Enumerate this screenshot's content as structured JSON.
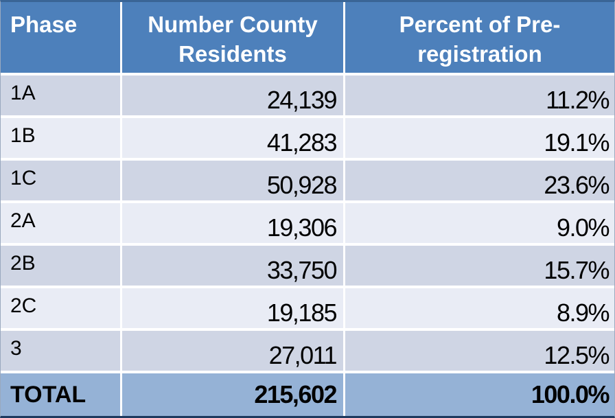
{
  "colors": {
    "header_bg": "#4d80bb",
    "header_text": "#ffffff",
    "band_dark": "#cfd5e4",
    "band_light": "#e9ecf5",
    "total_bg": "#95b2d6",
    "body_text": "#000000",
    "gap": "#ffffff",
    "border_top": "#3a6596",
    "border_bottom": "#1e3a5f",
    "border_side": "#9aa9bf"
  },
  "header": {
    "phase": "Phase",
    "residents": "Number County\nResidents",
    "percent": "Percent of Pre-\nregistration"
  },
  "rows": [
    {
      "phase": "1A",
      "residents": "24,139",
      "percent": "11.2%"
    },
    {
      "phase": "1B",
      "residents": "41,283",
      "percent": "19.1%"
    },
    {
      "phase": "1C",
      "residents": "50,928",
      "percent": "23.6%"
    },
    {
      "phase": "2A",
      "residents": "19,306",
      "percent": "9.0%"
    },
    {
      "phase": "2B",
      "residents": "33,750",
      "percent": "15.7%"
    },
    {
      "phase": "2C",
      "residents": "19,185",
      "percent": "8.9%"
    },
    {
      "phase": "3",
      "residents": "27,011",
      "percent": "12.5%"
    }
  ],
  "total": {
    "label": "TOTAL",
    "residents": "215,602",
    "percent": "100.0%"
  },
  "chart_data": {
    "type": "table",
    "columns": [
      "Phase",
      "Number County Residents",
      "Percent of Pre-registration"
    ],
    "rows": [
      [
        "1A",
        "24,139",
        "11.2%"
      ],
      [
        "1B",
        "41,283",
        "19.1%"
      ],
      [
        "1C",
        "50,928",
        "23.6%"
      ],
      [
        "2A",
        "19,306",
        "9.0%"
      ],
      [
        "2B",
        "33,750",
        "15.7%"
      ],
      [
        "2C",
        "19,185",
        "8.9%"
      ],
      [
        "3",
        "27,011",
        "12.5%"
      ]
    ],
    "total_row": [
      "TOTAL",
      "215,602",
      "100.0%"
    ],
    "notes": "Banded table; header and total rows in blue; counts right-aligned with thousands separators; percents sum to 100.0%"
  }
}
